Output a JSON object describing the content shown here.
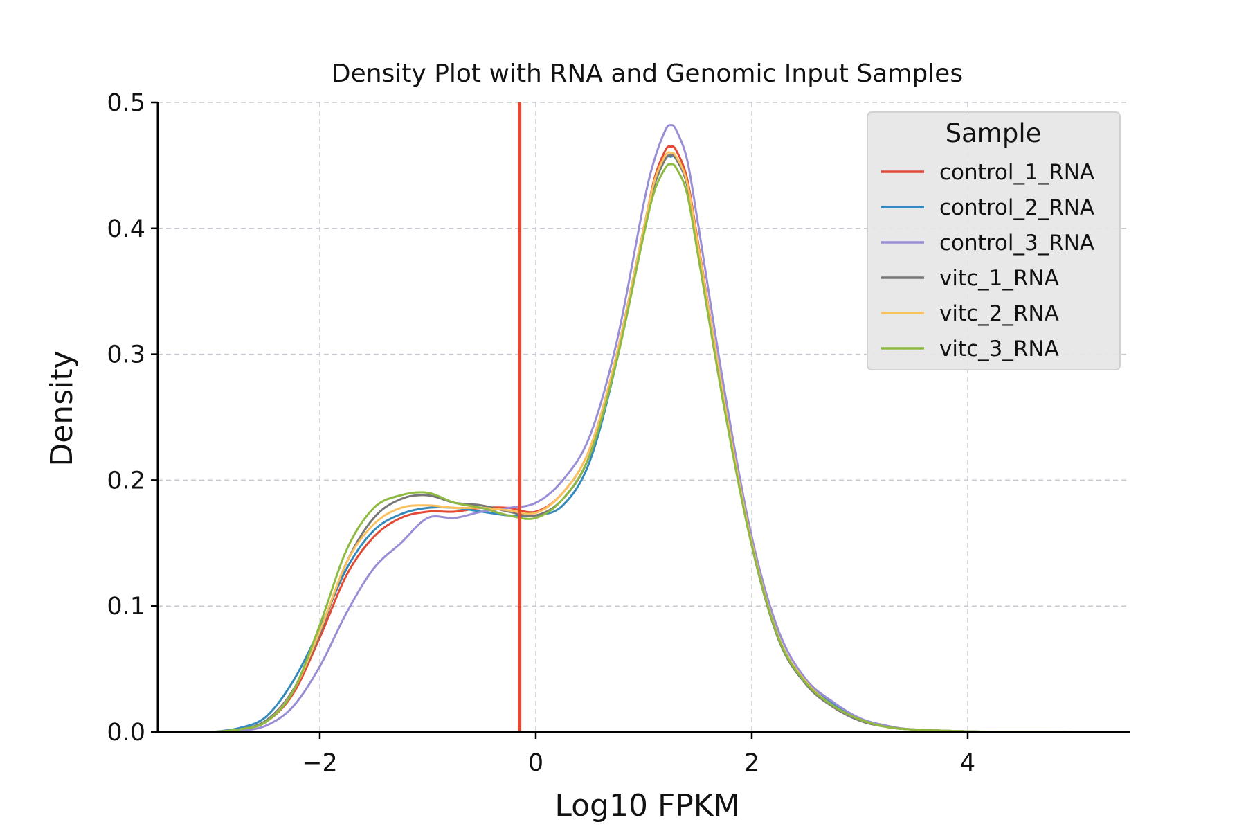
{
  "chart_data": {
    "type": "line",
    "title": "Density Plot with RNA and Genomic Input Samples",
    "xlabel": "Log10 FPKM",
    "ylabel": "Density",
    "xlim": [
      -3.5,
      5.5
    ],
    "ylim": [
      0,
      0.5
    ],
    "xticks": [
      -2,
      0,
      2,
      4
    ],
    "xtick_labels": [
      "−2",
      "0",
      "2",
      "4"
    ],
    "yticks": [
      0.0,
      0.1,
      0.2,
      0.3,
      0.4,
      0.5
    ],
    "ytick_labels": [
      "0.0",
      "0.1",
      "0.2",
      "0.3",
      "0.4",
      "0.5"
    ],
    "grid": true,
    "legend": {
      "title": "Sample",
      "position": "top-right"
    },
    "vline": {
      "x": -0.15,
      "color": "#e24a33"
    },
    "x": [
      -3.0,
      -2.75,
      -2.5,
      -2.25,
      -2.0,
      -1.75,
      -1.5,
      -1.25,
      -1.0,
      -0.75,
      -0.5,
      -0.25,
      0.0,
      0.25,
      0.5,
      0.75,
      1.0,
      1.1,
      1.2,
      1.25,
      1.3,
      1.4,
      1.5,
      1.75,
      2.0,
      2.25,
      2.5,
      2.75,
      3.0,
      3.25,
      3.5,
      4.0,
      4.5,
      5.0,
      5.5
    ],
    "series": [
      {
        "name": "control_1_RNA",
        "color": "#e24a33",
        "values": [
          0.0,
          0.002,
          0.008,
          0.03,
          0.075,
          0.125,
          0.155,
          0.17,
          0.175,
          0.175,
          0.178,
          0.178,
          0.175,
          0.19,
          0.225,
          0.3,
          0.4,
          0.44,
          0.462,
          0.465,
          0.462,
          0.44,
          0.39,
          0.26,
          0.15,
          0.075,
          0.04,
          0.022,
          0.01,
          0.004,
          0.002,
          0.0005,
          0.0001,
          0.0,
          0.0
        ]
      },
      {
        "name": "control_2_RNA",
        "color": "#348abd",
        "values": [
          0.0,
          0.003,
          0.012,
          0.04,
          0.082,
          0.13,
          0.16,
          0.173,
          0.178,
          0.178,
          0.175,
          0.172,
          0.172,
          0.18,
          0.215,
          0.295,
          0.4,
          0.435,
          0.455,
          0.457,
          0.455,
          0.435,
          0.385,
          0.26,
          0.15,
          0.075,
          0.04,
          0.022,
          0.01,
          0.004,
          0.002,
          0.0005,
          0.0001,
          0.0,
          0.0
        ]
      },
      {
        "name": "control_3_RNA",
        "color": "#988ed5",
        "values": [
          0.0,
          0.001,
          0.005,
          0.02,
          0.052,
          0.095,
          0.13,
          0.15,
          0.17,
          0.17,
          0.175,
          0.178,
          0.182,
          0.2,
          0.235,
          0.31,
          0.42,
          0.455,
          0.478,
          0.482,
          0.478,
          0.455,
          0.405,
          0.27,
          0.155,
          0.08,
          0.042,
          0.024,
          0.011,
          0.005,
          0.002,
          0.0005,
          0.0001,
          0.0,
          0.0
        ]
      },
      {
        "name": "vitc_1_RNA",
        "color": "#777777",
        "values": [
          0.0,
          0.002,
          0.009,
          0.033,
          0.078,
          0.135,
          0.17,
          0.185,
          0.188,
          0.182,
          0.18,
          0.175,
          0.172,
          0.185,
          0.22,
          0.3,
          0.4,
          0.435,
          0.455,
          0.458,
          0.455,
          0.435,
          0.385,
          0.258,
          0.148,
          0.073,
          0.038,
          0.02,
          0.009,
          0.004,
          0.002,
          0.0005,
          0.0001,
          0.0,
          0.0
        ]
      },
      {
        "name": "vitc_2_RNA",
        "color": "#fbc15e",
        "values": [
          0.0,
          0.002,
          0.008,
          0.032,
          0.08,
          0.135,
          0.165,
          0.178,
          0.18,
          0.178,
          0.178,
          0.176,
          0.174,
          0.19,
          0.225,
          0.3,
          0.4,
          0.438,
          0.458,
          0.46,
          0.457,
          0.437,
          0.388,
          0.26,
          0.15,
          0.075,
          0.04,
          0.021,
          0.01,
          0.004,
          0.002,
          0.0005,
          0.0001,
          0.0,
          0.0
        ]
      },
      {
        "name": "vitc_3_RNA",
        "color": "#8eba42",
        "values": [
          0.0,
          0.002,
          0.008,
          0.032,
          0.085,
          0.145,
          0.178,
          0.188,
          0.19,
          0.182,
          0.178,
          0.172,
          0.17,
          0.185,
          0.22,
          0.295,
          0.395,
          0.43,
          0.448,
          0.451,
          0.448,
          0.428,
          0.38,
          0.255,
          0.148,
          0.074,
          0.039,
          0.021,
          0.01,
          0.004,
          0.002,
          0.0005,
          0.0001,
          0.0,
          0.0
        ]
      }
    ]
  }
}
